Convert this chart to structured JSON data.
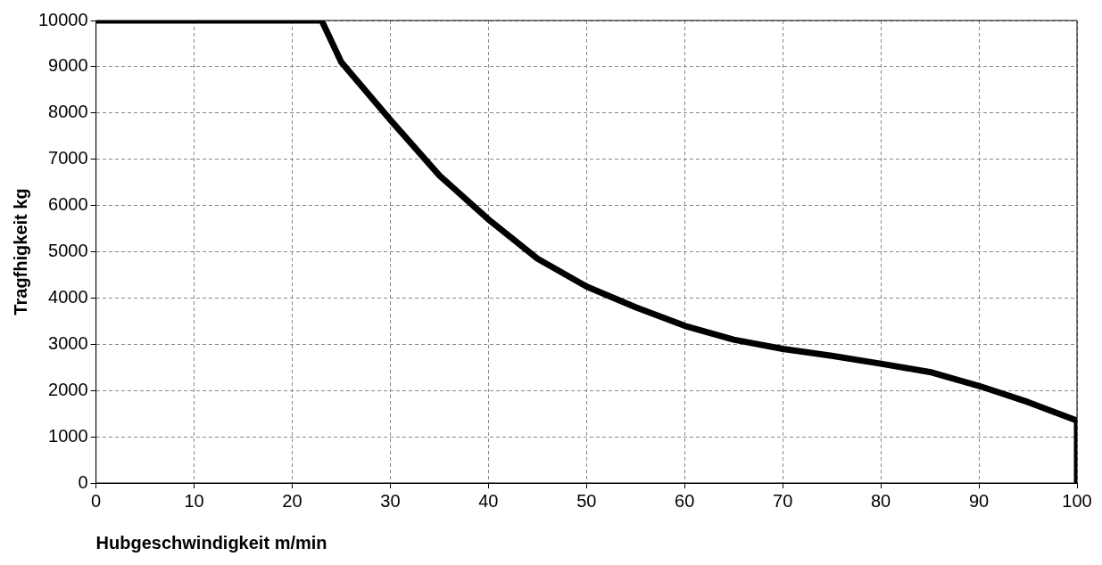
{
  "chart_data": {
    "type": "line",
    "xlabel": "Hubgeschwindigkeit m/min",
    "ylabel": "Tragfhigkeit kg",
    "x": [
      0,
      23,
      25,
      30,
      35,
      40,
      45,
      50,
      55,
      60,
      65,
      70,
      75,
      80,
      85,
      90,
      95,
      100,
      100
    ],
    "series": [
      {
        "color": "#000000",
        "values": [
          10000,
          10000,
          9100,
          7850,
          6650,
          5700,
          4850,
          4250,
          3800,
          3400,
          3100,
          2900,
          2750,
          2580,
          2400,
          2100,
          1750,
          1350,
          0
        ]
      }
    ],
    "xlim": [
      0,
      100
    ],
    "xticks": [
      0,
      10,
      20,
      30,
      40,
      50,
      60,
      70,
      80,
      90,
      100
    ],
    "ylim": [
      0,
      10000
    ],
    "yticks": [
      0,
      1000,
      2000,
      3000,
      4000,
      5000,
      6000,
      7000,
      8000,
      9000,
      10000
    ],
    "grid": true,
    "legend": false,
    "marker": "none",
    "line_style": "solid"
  }
}
